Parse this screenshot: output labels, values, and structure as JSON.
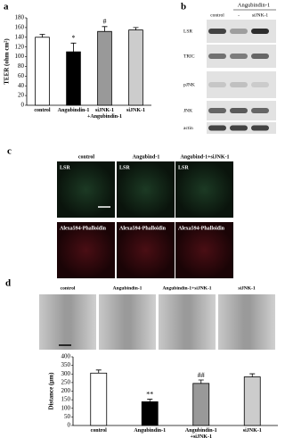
{
  "panel_labels": [
    "a",
    "b",
    "c",
    "d"
  ],
  "blot": {
    "group_label": "Angubindin-1",
    "lanes": [
      "control",
      "-",
      "siJNK-1"
    ],
    "rows": [
      "LSR",
      "TRIC",
      "pJNK",
      "JNK",
      "actin"
    ]
  },
  "microscopy": {
    "columns": [
      "control",
      "Angubind-1",
      "Angubind-1+siJNK-1"
    ],
    "rows": [
      "LSR",
      "Alexa594-Phalloidin"
    ]
  },
  "scratch": {
    "columns": [
      "control",
      "Angubindin-1",
      "Angubindin-1+siJNK-1",
      "siJNK-1"
    ]
  },
  "chart_data": [
    {
      "type": "bar",
      "ylabel": "TEER (ohm cm²)",
      "categories": [
        "control",
        "Angubindin-1",
        "siJNK-1\n+Angubindin-1",
        "siJNK-1"
      ],
      "values": [
        140,
        110,
        152,
        155
      ],
      "errors": [
        6,
        18,
        10,
        5
      ],
      "annotations": [
        null,
        "*",
        "#",
        null
      ],
      "colors": [
        "#ffffff",
        "#000000",
        "#999999",
        "#cccccc"
      ],
      "ylim": [
        0,
        180
      ],
      "yticks": [
        0,
        20,
        40,
        60,
        80,
        100,
        120,
        140,
        160,
        180
      ]
    },
    {
      "type": "bar",
      "ylabel": "Distance (μm)",
      "categories": [
        "control",
        "Angubindin-1",
        "Angubindin-1\n+siJNK-1",
        "siJNK-1"
      ],
      "values": [
        305,
        138,
        245,
        283
      ],
      "errors": [
        18,
        15,
        20,
        18
      ],
      "annotations": [
        null,
        "**",
        "##",
        null
      ],
      "colors": [
        "#ffffff",
        "#000000",
        "#999999",
        "#cccccc"
      ],
      "ylim": [
        0,
        400
      ],
      "yticks": [
        0,
        50,
        100,
        150,
        200,
        250,
        300,
        350,
        400
      ]
    }
  ]
}
